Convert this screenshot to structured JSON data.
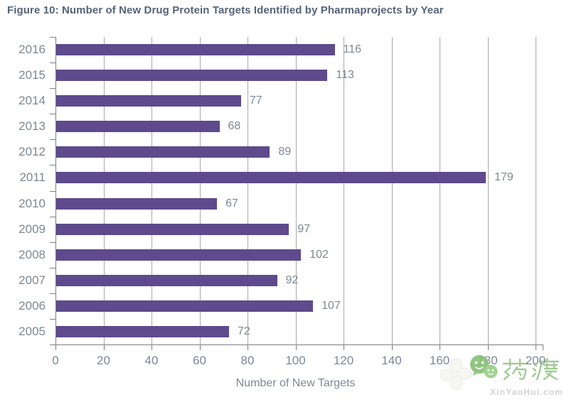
{
  "figure": {
    "title": "Figure 10: Number of New Drug Protein Targets Identified by Pharmaprojects by Year"
  },
  "chart_data": {
    "type": "bar",
    "orientation": "horizontal",
    "title": "Figure 10: Number of New Drug Protein Targets Identified by Pharmaprojects by Year",
    "categories": [
      "2016",
      "2015",
      "2014",
      "2013",
      "2012",
      "2011",
      "2010",
      "2009",
      "2008",
      "2007",
      "2006",
      "2005"
    ],
    "values": [
      116,
      113,
      77,
      68,
      89,
      179,
      67,
      97,
      102,
      92,
      107,
      72
    ],
    "xlabel": "Number of New Targets",
    "ylabel": "",
    "xlim": [
      0,
      200
    ],
    "xticks": [
      0,
      20,
      40,
      60,
      80,
      100,
      120,
      140,
      160,
      180,
      200
    ],
    "grid": true,
    "legend_position": "none",
    "bar_color": "#5e4a8c",
    "value_label_color": "#7e8794",
    "tick_label_color": "#7e8794",
    "grid_color": "#a9a9a9",
    "axis_color": "#7f7f7f",
    "title_color": "#55637a"
  },
  "watermark": {
    "brand_text": "药渡",
    "site_text": "XinYaoHui.com",
    "brand_color": "#63a74f",
    "icons": {
      "clover": "clover-icon",
      "face": "chat-bubble-face-icon"
    }
  }
}
